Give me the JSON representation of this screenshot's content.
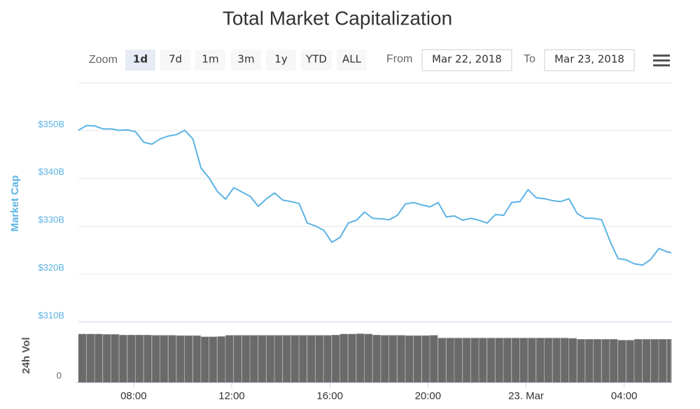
{
  "chart_data": {
    "type": "line",
    "title": "Total Market Capitalization",
    "zoom": {
      "label": "Zoom",
      "options": [
        "1d",
        "7d",
        "1m",
        "3m",
        "1y",
        "YTD",
        "ALL"
      ],
      "selected": 0
    },
    "range": {
      "from_label": "From",
      "from": "Mar 22, 2018",
      "to_label": "To",
      "to": "Mar 23, 2018"
    },
    "x": [
      "2018-03-22T05:45",
      "2018-03-22T06:05",
      "2018-03-22T06:25",
      "2018-03-22T06:45",
      "2018-03-22T07:05",
      "2018-03-22T07:25",
      "2018-03-22T07:45",
      "2018-03-22T08:05",
      "2018-03-22T08:25",
      "2018-03-22T08:45",
      "2018-03-22T09:05",
      "2018-03-22T09:25",
      "2018-03-22T09:45",
      "2018-03-22T10:05",
      "2018-03-22T10:25",
      "2018-03-22T10:45",
      "2018-03-22T11:05",
      "2018-03-22T11:25",
      "2018-03-22T11:45",
      "2018-03-22T12:05",
      "2018-03-22T12:25",
      "2018-03-22T12:45",
      "2018-03-22T13:05",
      "2018-03-22T13:25",
      "2018-03-22T13:45",
      "2018-03-22T14:05",
      "2018-03-22T14:25",
      "2018-03-22T14:45",
      "2018-03-22T15:05",
      "2018-03-22T15:25",
      "2018-03-22T15:45",
      "2018-03-22T16:05",
      "2018-03-22T16:25",
      "2018-03-22T16:45",
      "2018-03-22T17:05",
      "2018-03-22T17:25",
      "2018-03-22T17:45",
      "2018-03-22T18:05",
      "2018-03-22T18:25",
      "2018-03-22T18:45",
      "2018-03-22T19:05",
      "2018-03-22T19:25",
      "2018-03-22T19:45",
      "2018-03-22T20:05",
      "2018-03-22T20:25",
      "2018-03-22T20:45",
      "2018-03-22T21:05",
      "2018-03-22T21:25",
      "2018-03-22T21:45",
      "2018-03-22T22:05",
      "2018-03-22T22:25",
      "2018-03-22T22:45",
      "2018-03-22T23:05",
      "2018-03-22T23:25",
      "2018-03-22T23:45",
      "2018-03-23T00:05",
      "2018-03-23T00:25",
      "2018-03-23T00:45",
      "2018-03-23T01:05",
      "2018-03-23T01:25",
      "2018-03-23T01:45",
      "2018-03-23T02:05",
      "2018-03-23T02:25",
      "2018-03-23T02:45",
      "2018-03-23T03:05",
      "2018-03-23T03:25",
      "2018-03-23T03:45",
      "2018-03-23T04:05",
      "2018-03-23T04:25",
      "2018-03-23T04:45",
      "2018-03-23T05:05",
      "2018-03-23T05:25",
      "2018-03-23T05:45",
      "2018-03-23T05:55"
    ],
    "xlim": [
      "2018-03-22T05:45",
      "2018-03-23T05:57"
    ],
    "xticks": [
      {
        "value": "2018-03-22T08:00",
        "label": "08:00"
      },
      {
        "value": "2018-03-22T12:00",
        "label": "12:00"
      },
      {
        "value": "2018-03-22T16:00",
        "label": "16:00"
      },
      {
        "value": "2018-03-22T20:00",
        "label": "20:00"
      },
      {
        "value": "2018-03-23T00:00",
        "label": "23. Mar"
      },
      {
        "value": "2018-03-23T04:00",
        "label": "04:00"
      }
    ],
    "ylim": [
      310,
      360
    ],
    "yticks": [
      {
        "value": 310,
        "label": "$310B"
      },
      {
        "value": 320,
        "label": "$320B"
      },
      {
        "value": 330,
        "label": "$330B"
      },
      {
        "value": 340,
        "label": "$340B"
      },
      {
        "value": 350,
        "label": "$350B"
      }
    ],
    "y2lim": [
      0,
      20
    ],
    "y2ticks": [
      0
    ],
    "grid": true,
    "series": [
      {
        "name": "Market Cap",
        "type": "line",
        "color": "#5cb3e3",
        "values": [
          350.0,
          351.0,
          350.9,
          350.3,
          350.3,
          350.0,
          350.1,
          349.7,
          347.5,
          347.1,
          348.2,
          348.8,
          349.1,
          350.0,
          348.2,
          342.1,
          340.0,
          337.2,
          335.6,
          338.0,
          337.1,
          336.2,
          334.1,
          335.7,
          336.9,
          335.4,
          335.1,
          334.7,
          330.6,
          330.0,
          329.1,
          326.6,
          327.6,
          330.6,
          331.2,
          332.9,
          331.6,
          331.5,
          331.3,
          332.2,
          334.6,
          334.9,
          334.4,
          334.0,
          334.9,
          331.9,
          332.1,
          331.2,
          331.6,
          331.2,
          330.6,
          332.4,
          332.2,
          334.9,
          335.1,
          337.6,
          335.9,
          335.7,
          335.3,
          335.1,
          335.7,
          332.6,
          331.6,
          331.6,
          331.3,
          326.9,
          323.2,
          322.9,
          322.1,
          321.8,
          323.0,
          325.3,
          324.6,
          324.4
        ]
      },
      {
        "name": "24h Vol",
        "type": "bar",
        "axis": "y2",
        "color": "#6a6a6a",
        "values": [
          15.9,
          15.9,
          15.9,
          15.8,
          15.8,
          15.6,
          15.6,
          15.6,
          15.6,
          15.5,
          15.5,
          15.5,
          15.4,
          15.4,
          15.4,
          15.0,
          15.0,
          15.1,
          15.5,
          15.5,
          15.5,
          15.5,
          15.5,
          15.5,
          15.5,
          15.5,
          15.5,
          15.5,
          15.5,
          15.5,
          15.5,
          15.6,
          15.9,
          15.9,
          16.0,
          15.9,
          15.6,
          15.5,
          15.5,
          15.5,
          15.4,
          15.4,
          15.4,
          15.5,
          14.6,
          14.6,
          14.6,
          14.6,
          14.6,
          14.6,
          14.6,
          14.6,
          14.6,
          14.6,
          14.6,
          14.6,
          14.6,
          14.6,
          14.6,
          14.6,
          14.5,
          14.2,
          14.2,
          14.2,
          14.2,
          14.2,
          13.9,
          13.9,
          14.2,
          14.2,
          14.2,
          14.2,
          14.2,
          14.2
        ]
      }
    ]
  }
}
